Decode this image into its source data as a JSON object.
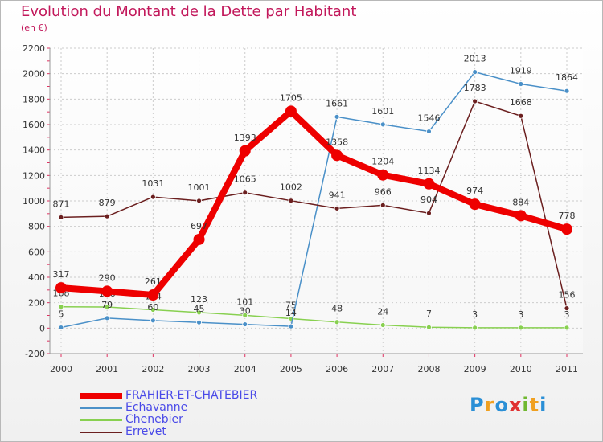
{
  "chart_data": {
    "type": "line",
    "title": "Evolution du Montant de la Dette par Habitant",
    "subtitle": "(en €)",
    "xlabel": "",
    "ylabel": "",
    "categories": [
      "2000",
      "2001",
      "2002",
      "2003",
      "2004",
      "2005",
      "2006",
      "2007",
      "2008",
      "2009",
      "2010",
      "2011"
    ],
    "ylim": [
      -200,
      2200
    ],
    "yticks": [
      -200,
      0,
      200,
      400,
      600,
      800,
      1000,
      1200,
      1400,
      1600,
      1800,
      2000,
      2200
    ],
    "grid": true,
    "legend_position": "bottom-left",
    "series": [
      {
        "name": "FRAHIER-ET-CHATEBIER",
        "color": "#ee0000",
        "values": [
          317,
          290,
          261,
          697,
          1393,
          1705,
          1358,
          1204,
          1134,
          974,
          884,
          778
        ]
      },
      {
        "name": "Echavanne",
        "color": "#4a90c8",
        "values": [
          5,
          79,
          60,
          45,
          30,
          14,
          1661,
          1601,
          1546,
          2013,
          1919,
          1864
        ]
      },
      {
        "name": "Chenebier",
        "color": "#88d050",
        "values": [
          168,
          166,
          144,
          123,
          101,
          75,
          48,
          24,
          7,
          3,
          3,
          3
        ]
      },
      {
        "name": "Errevet",
        "color": "#6b1f1f",
        "values": [
          871,
          879,
          1031,
          1001,
          1065,
          1002,
          941,
          966,
          904,
          1783,
          1668,
          156
        ]
      }
    ]
  },
  "legend": {
    "items": [
      {
        "label": "FRAHIER-ET-CHATEBIER",
        "color": "#ee0000"
      },
      {
        "label": "Echavanne",
        "color": "#4a90c8"
      },
      {
        "label": "Chenebier",
        "color": "#88d050"
      },
      {
        "label": "Errevet",
        "color": "#6b1f1f"
      }
    ]
  },
  "logo": {
    "text": "Proxiti",
    "letters": [
      "P",
      "r",
      "o",
      "x",
      "i",
      "t",
      "i"
    ]
  }
}
